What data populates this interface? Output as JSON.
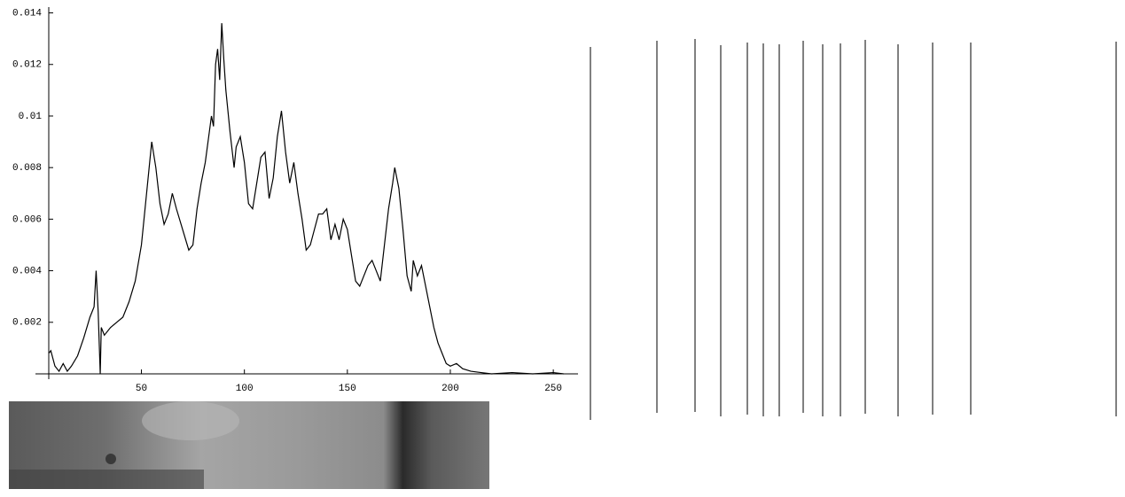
{
  "chart_data": {
    "type": "line",
    "x": [
      5,
      6,
      8,
      10,
      12,
      14,
      16,
      19,
      22,
      25,
      27,
      28,
      29,
      30,
      30.5,
      32,
      35,
      38,
      41,
      44,
      47,
      50,
      52,
      54,
      55,
      57,
      59,
      61,
      63,
      65,
      67,
      70,
      73,
      75,
      77,
      79,
      81,
      83,
      84,
      85,
      86,
      87,
      88,
      89,
      90,
      91,
      93,
      95,
      96,
      98,
      100,
      102,
      104,
      106,
      108,
      110,
      112,
      114,
      116,
      118,
      120,
      122,
      124,
      126,
      128,
      130,
      132,
      134,
      136,
      138,
      140,
      142,
      144,
      146,
      148,
      150,
      152,
      154,
      156,
      158,
      160,
      162,
      164,
      166,
      168,
      170,
      172,
      173,
      175,
      177,
      179,
      181,
      182,
      184,
      186,
      188,
      190,
      192,
      194,
      196,
      198,
      200,
      203,
      206,
      210,
      215,
      220,
      230,
      240,
      250,
      255
    ],
    "values": [
      0.0008,
      0.0009,
      0.0003,
      0.0001,
      0.0004,
      0.0001,
      0.0003,
      0.0007,
      0.0014,
      0.0022,
      0.0026,
      0.004,
      0.0024,
      0,
      0.0018,
      0.0015,
      0.0018,
      0.002,
      0.0022,
      0.0028,
      0.0036,
      0.005,
      0.0066,
      0.0082,
      0.009,
      0.008,
      0.0066,
      0.0058,
      0.0062,
      0.007,
      0.0064,
      0.0056,
      0.0048,
      0.005,
      0.0064,
      0.0074,
      0.0082,
      0.0094,
      0.01,
      0.0096,
      0.012,
      0.0126,
      0.0114,
      0.0136,
      0.0122,
      0.011,
      0.0094,
      0.008,
      0.0088,
      0.0092,
      0.0082,
      0.0066,
      0.0064,
      0.0074,
      0.0084,
      0.0086,
      0.0068,
      0.0076,
      0.0092,
      0.0102,
      0.0086,
      0.0074,
      0.0082,
      0.007,
      0.006,
      0.0048,
      0.005,
      0.0056,
      0.0062,
      0.0062,
      0.0064,
      0.0052,
      0.0058,
      0.0052,
      0.006,
      0.0056,
      0.0046,
      0.0036,
      0.0034,
      0.0038,
      0.0042,
      0.0044,
      0.004,
      0.0036,
      0.005,
      0.0064,
      0.0074,
      0.008,
      0.0072,
      0.0056,
      0.0038,
      0.0032,
      0.0044,
      0.0038,
      0.0042,
      0.0034,
      0.0026,
      0.0018,
      0.0012,
      0.0008,
      0.0004,
      0.0003,
      0.0004,
      0.0002,
      0.0001,
      5e-05,
      0,
      5e-05,
      0,
      5e-05,
      0
    ],
    "color": "#000000",
    "xlim": [
      5,
      262
    ],
    "ylim": [
      0,
      0.0145
    ],
    "xticks": [
      50,
      100,
      150,
      200,
      250
    ],
    "yticks": [
      0.002,
      0.004,
      0.006,
      0.008,
      0.01,
      0.012,
      0.014
    ]
  }
}
